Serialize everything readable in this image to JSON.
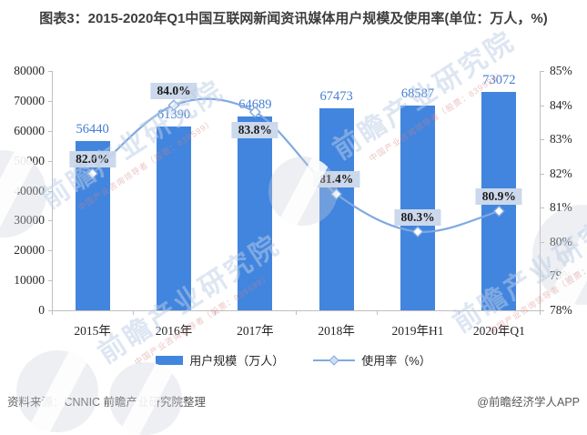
{
  "title": "图表3：2015-2020年Q1中国互联网新闻资讯媒体用户规模及使用率(单位：万人，%)",
  "chart_data": {
    "type": "bar+line",
    "categories": [
      "2015年",
      "2016年",
      "2017年",
      "2018年",
      "2019年H1",
      "2020年Q1"
    ],
    "series": [
      {
        "name": "用户规模（万人）",
        "type": "bar",
        "axis": "left",
        "values": [
          56440,
          61390,
          64689,
          67473,
          68587,
          73072
        ],
        "value_labels": [
          "56440",
          "61390",
          "64689",
          "67473",
          "68587",
          "73072"
        ]
      },
      {
        "name": "使用率（%）",
        "type": "line",
        "axis": "right",
        "values": [
          82.0,
          84.0,
          83.8,
          81.4,
          80.3,
          80.9
        ],
        "value_labels": [
          "82.0%",
          "84.0%",
          "83.8%",
          "81.4%",
          "80.3%",
          "80.9%"
        ],
        "label_side": [
          "above",
          "above",
          "below",
          "above",
          "above",
          "above"
        ],
        "smooth": true,
        "marker": "diamond"
      }
    ],
    "left_axis": {
      "min": 0,
      "max": 80000,
      "step": 10000
    },
    "right_axis": {
      "min": 78,
      "max": 85,
      "step": 1,
      "suffix": "%"
    },
    "grid": false,
    "legend_position": "bottom"
  },
  "legend": {
    "bar_label": "用户规模（万人）",
    "line_label": "使用率（%）"
  },
  "footer": {
    "source": "资料来源：CNNIC  前瞻产业研究院整理",
    "credit": "@前瞻经济学人APP"
  },
  "watermark": {
    "text": "前瞻产业研究院",
    "slogan": "中国产业咨询领导者（股票：839599）"
  },
  "colors": {
    "bar": "#4285DE",
    "line": "#7FA9E0",
    "marker_fill": "#FFFFFF",
    "value_label": "#447DD0",
    "rate_label_bg": "#CCD8EB",
    "rate_label_text": "#1A1A1A",
    "axis_line": "#BFBFBF",
    "axis_text": "#262626",
    "title_text": "#3D3D3D",
    "footer_text": "#595959"
  }
}
